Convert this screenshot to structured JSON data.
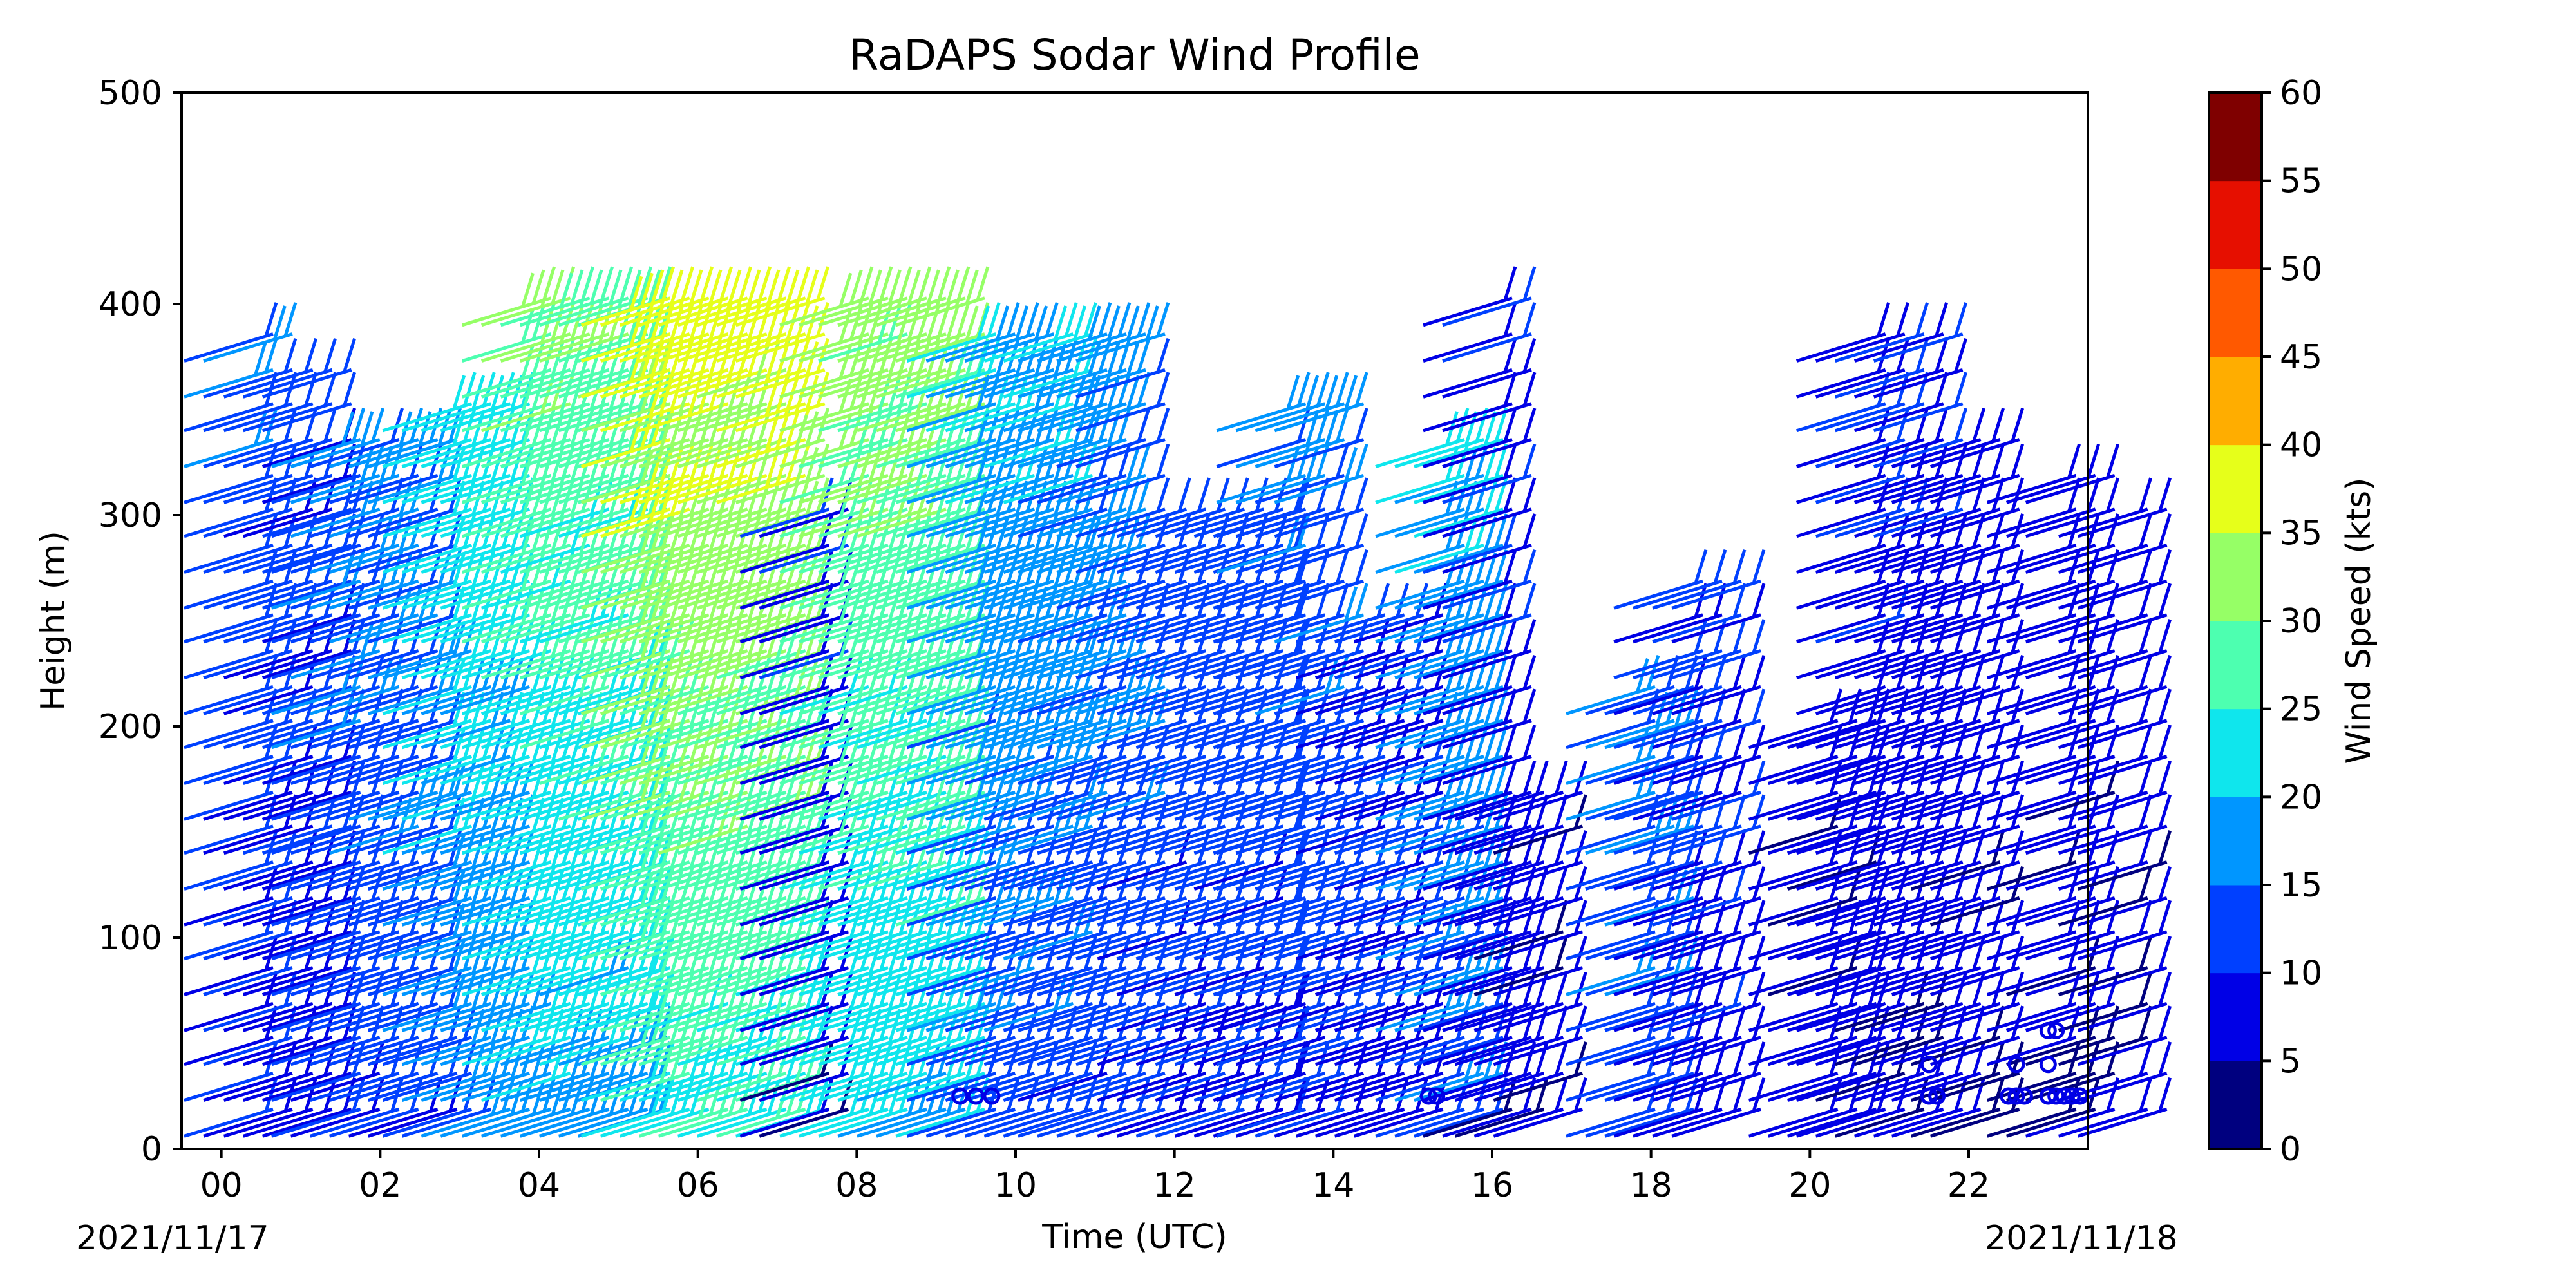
{
  "chart_data": {
    "type": "wind-barb",
    "title": "RaDAPS Sodar Wind Profile",
    "xlabel": "Time (UTC)",
    "ylabel": "Height (m)",
    "xlim": [
      -0.5,
      23.5
    ],
    "ylim": [
      0,
      500
    ],
    "xtick_values": [
      0,
      2,
      4,
      6,
      8,
      10,
      12,
      14,
      16,
      18,
      20,
      22
    ],
    "xtick_labels": [
      "00",
      "02",
      "04",
      "06",
      "08",
      "10",
      "12",
      "14",
      "16",
      "18",
      "20",
      "22"
    ],
    "ytick_values": [
      0,
      100,
      200,
      300,
      400,
      500
    ],
    "ytick_labels": [
      "0",
      "100",
      "200",
      "300",
      "400",
      "500"
    ],
    "date_start": "2021/11/17",
    "date_end": "2021/11/18",
    "colorbar": {
      "label": "Wind Speed (kts)",
      "levels": [
        0,
        5,
        10,
        15,
        20,
        25,
        30,
        35,
        40,
        45,
        50,
        55,
        60
      ],
      "level_labels": [
        "0",
        "5",
        "10",
        "15",
        "20",
        "25",
        "30",
        "35",
        "40",
        "45",
        "50",
        "55",
        "60"
      ],
      "colors": [
        "#00007f",
        "#0000e6",
        "#0040ff",
        "#0096ff",
        "#0fe6ed",
        "#4dffb0",
        "#96ff66",
        "#e6ff1a",
        "#ffad00",
        "#ff5900",
        "#e60f00",
        "#7f0000"
      ]
    },
    "grid": false,
    "legend": "none",
    "heights_m": [
      6,
      23,
      40,
      56,
      73,
      90,
      106,
      123,
      140,
      156,
      173,
      190,
      206,
      223,
      240,
      256,
      273,
      290,
      306,
      323,
      340,
      356,
      373,
      390
    ],
    "segments": [
      {
        "start": -0.5,
        "end": 0.0,
        "top": 385,
        "speed": 12
      },
      {
        "start": 0.0,
        "end": 0.6,
        "top": 365,
        "speed": 10
      },
      {
        "start": 0.6,
        "end": 2.0,
        "top": 325,
        "speed": 14
      },
      {
        "start": 2.0,
        "end": 3.0,
        "top": 345,
        "speed": 20
      },
      {
        "start": 3.0,
        "end": 4.5,
        "top": 400,
        "speed": 24
      },
      {
        "start": 4.5,
        "end": 6.5,
        "top": 400,
        "speed": 30
      },
      {
        "start": 6.5,
        "end": 7.0,
        "top": 300,
        "speed": 8
      },
      {
        "start": 7.0,
        "end": 8.6,
        "top": 400,
        "speed": 26
      },
      {
        "start": 8.6,
        "end": 10.0,
        "top": 385,
        "speed": 16
      },
      {
        "start": 10.0,
        "end": 11.0,
        "top": 385,
        "speed": 14
      },
      {
        "start": 11.0,
        "end": 12.5,
        "top": 295,
        "speed": 12
      },
      {
        "start": 12.5,
        "end": 13.5,
        "top": 355,
        "speed": 13
      },
      {
        "start": 13.5,
        "end": 14.5,
        "top": 250,
        "speed": 10
      },
      {
        "start": 14.5,
        "end": 15.1,
        "top": 335,
        "speed": 17
      },
      {
        "start": 15.1,
        "end": 15.5,
        "top": 405,
        "speed": 8
      },
      {
        "start": 15.5,
        "end": 16.2,
        "top": 170,
        "speed": 7
      },
      {
        "start": 16.9,
        "end": 17.5,
        "top": 215,
        "speed": 16
      },
      {
        "start": 17.5,
        "end": 18.5,
        "top": 260,
        "speed": 10
      },
      {
        "start": 19.2,
        "end": 19.8,
        "top": 200,
        "speed": 7
      },
      {
        "start": 19.8,
        "end": 21.0,
        "top": 375,
        "speed": 8
      },
      {
        "start": 21.0,
        "end": 21.7,
        "top": 330,
        "speed": 7
      },
      {
        "start": 22.2,
        "end": 22.9,
        "top": 315,
        "speed": 7
      },
      {
        "start": 23.1,
        "end": 23.5,
        "top": 300,
        "speed": 7
      }
    ],
    "calm_points": [
      {
        "x": 9.3,
        "y": 25
      },
      {
        "x": 9.5,
        "y": 25
      },
      {
        "x": 9.7,
        "y": 25
      },
      {
        "x": 15.2,
        "y": 25
      },
      {
        "x": 15.3,
        "y": 25
      },
      {
        "x": 21.5,
        "y": 25
      },
      {
        "x": 21.6,
        "y": 25
      },
      {
        "x": 21.5,
        "y": 40
      },
      {
        "x": 22.5,
        "y": 25
      },
      {
        "x": 22.6,
        "y": 25
      },
      {
        "x": 22.7,
        "y": 25
      },
      {
        "x": 22.6,
        "y": 40
      },
      {
        "x": 23.0,
        "y": 25
      },
      {
        "x": 23.1,
        "y": 25
      },
      {
        "x": 23.2,
        "y": 25
      },
      {
        "x": 23.3,
        "y": 25
      },
      {
        "x": 23.4,
        "y": 25
      },
      {
        "x": 23.0,
        "y": 40
      },
      {
        "x": 23.0,
        "y": 56
      },
      {
        "x": 23.1,
        "y": 56
      }
    ]
  }
}
